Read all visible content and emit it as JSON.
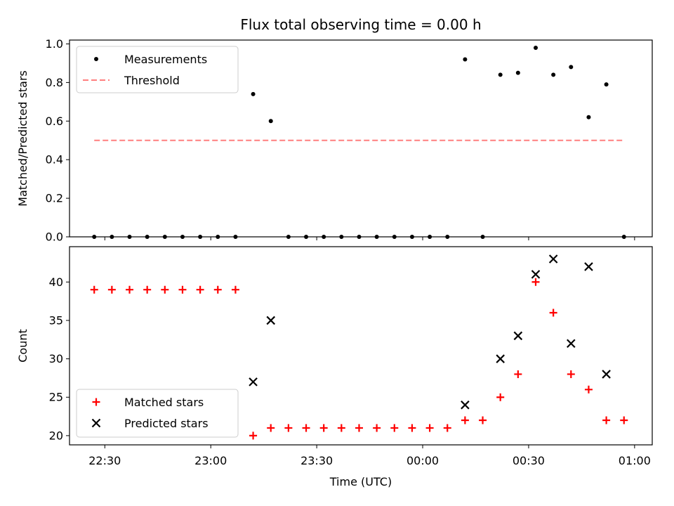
{
  "title": "Flux total observing time = 0.00 h",
  "chart_data": [
    {
      "type": "scatter",
      "ylabel": "Matched/Predicted stars",
      "ylim": [
        0,
        1.02
      ],
      "yticks": [
        0.0,
        0.2,
        0.4,
        0.6,
        0.8,
        1.0
      ],
      "ytick_labels": [
        "0.0",
        "0.2",
        "0.4",
        "0.6",
        "0.8",
        "1.0"
      ],
      "legend_position": "top-left",
      "series": [
        {
          "name": "Measurements",
          "style": "dot",
          "color": "#000000",
          "x": [
            "22:27",
            "22:32",
            "22:37",
            "22:42",
            "22:47",
            "22:52",
            "22:57",
            "23:02",
            "23:07",
            "23:12",
            "23:17",
            "23:22",
            "23:27",
            "23:32",
            "23:37",
            "23:42",
            "23:47",
            "23:52",
            "23:57",
            "00:02",
            "00:07",
            "00:12",
            "00:17",
            "00:22",
            "00:27",
            "00:32",
            "00:37",
            "00:42",
            "00:47",
            "00:52",
            "00:57"
          ],
          "y": [
            0,
            0,
            0,
            0,
            0,
            0,
            0,
            0,
            0,
            0.74,
            0.6,
            0,
            0,
            0,
            0,
            0,
            0,
            0,
            0,
            0,
            0,
            0.92,
            0,
            0.84,
            0.85,
            0.98,
            0.84,
            0.88,
            0.62,
            0.79,
            0
          ]
        },
        {
          "name": "Threshold",
          "style": "dashed-line",
          "color": "#ff7f7f",
          "x": [
            "22:27",
            "00:57"
          ],
          "y": [
            0.5,
            0.5
          ]
        }
      ]
    },
    {
      "type": "scatter",
      "xlabel": "Time (UTC)",
      "ylabel": "Count",
      "ylim": [
        18.8,
        44.6
      ],
      "yticks": [
        20,
        25,
        30,
        35,
        40
      ],
      "ytick_labels": [
        "20",
        "25",
        "30",
        "35",
        "40"
      ],
      "xlim": [
        "22:20",
        "01:05"
      ],
      "xticks": [
        "22:30",
        "23:00",
        "23:30",
        "00:00",
        "00:30",
        "01:00"
      ],
      "xtick_labels": [
        "22:30",
        "23:00",
        "23:30",
        "00:00",
        "00:30",
        "01:00"
      ],
      "legend_position": "bottom-left",
      "series": [
        {
          "name": "Matched stars",
          "style": "plus",
          "color": "#ff0000",
          "x": [
            "22:27",
            "22:32",
            "22:37",
            "22:42",
            "22:47",
            "22:52",
            "22:57",
            "23:02",
            "23:07",
            "23:12",
            "23:17",
            "23:22",
            "23:27",
            "23:32",
            "23:37",
            "23:42",
            "23:47",
            "23:52",
            "23:57",
            "00:02",
            "00:07",
            "00:12",
            "00:17",
            "00:22",
            "00:27",
            "00:32",
            "00:37",
            "00:42",
            "00:47",
            "00:52",
            "00:57"
          ],
          "y": [
            39,
            39,
            39,
            39,
            39,
            39,
            39,
            39,
            39,
            20,
            21,
            21,
            21,
            21,
            21,
            21,
            21,
            21,
            21,
            21,
            21,
            22,
            22,
            25,
            28,
            40,
            36,
            28,
            26,
            22,
            22
          ]
        },
        {
          "name": "Predicted stars",
          "style": "x",
          "color": "#000000",
          "x": [
            "23:12",
            "23:17",
            "00:12",
            "00:22",
            "00:27",
            "00:32",
            "00:37",
            "00:42",
            "00:47",
            "00:52"
          ],
          "y": [
            27,
            35,
            24,
            30,
            33,
            41,
            43,
            32,
            42,
            28
          ]
        }
      ]
    }
  ]
}
